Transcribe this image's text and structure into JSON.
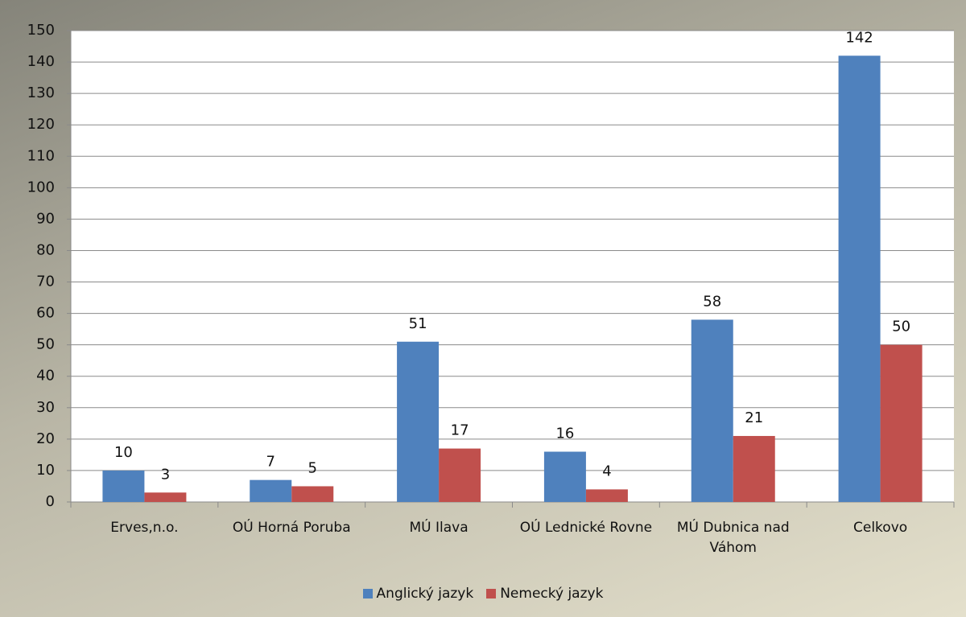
{
  "chart_data": {
    "type": "bar",
    "categories": [
      "Erves,n.o.",
      "OÚ Horná Poruba",
      "MÚ Ilava",
      "OÚ Lednické Rovne",
      "MÚ Dubnica nad Váhom",
      "Celkovo"
    ],
    "series": [
      {
        "name": "Anglický jazyk",
        "color": "#4f81bd",
        "values": [
          10,
          7,
          51,
          16,
          58,
          142
        ]
      },
      {
        "name": "Nemecký jazyk",
        "color": "#c0504d",
        "values": [
          3,
          5,
          17,
          4,
          21,
          50
        ]
      }
    ],
    "ylim": [
      0,
      150
    ],
    "yticks": [
      0,
      10,
      20,
      30,
      40,
      50,
      60,
      70,
      80,
      90,
      100,
      110,
      120,
      130,
      140,
      150
    ],
    "grid": true,
    "legend": "bottom"
  }
}
